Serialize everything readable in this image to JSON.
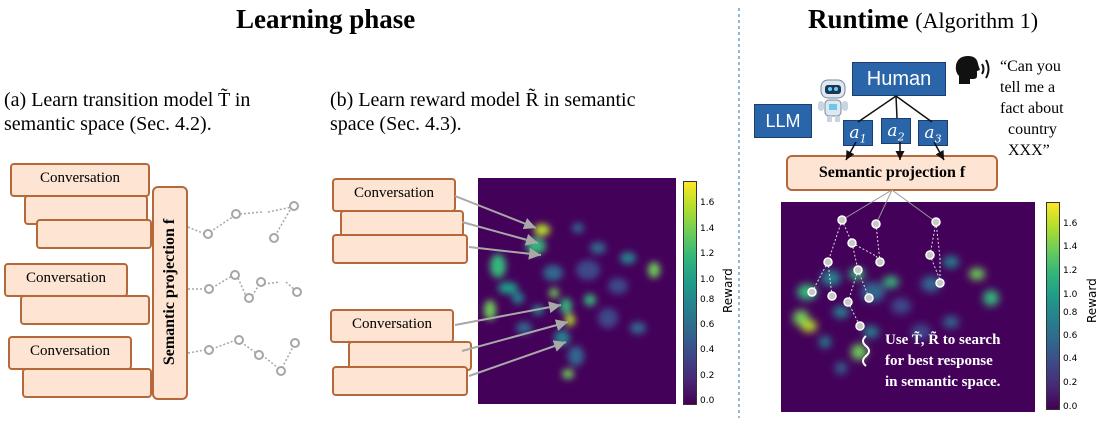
{
  "learning": {
    "title": "Learning phase",
    "panel_a": {
      "line1": "(a) Learn transition model T̃ in",
      "line2": "semantic space (Sec. 4.2)."
    },
    "panel_b": {
      "line1": "(b) Learn reward model R̃ in semantic",
      "line2": "space (Sec. 4.3)."
    },
    "conversation_label": "Conversation",
    "semantic_projection_label": "Semantic projection f"
  },
  "runtime": {
    "title": "Runtime",
    "title_suffix": "(Algorithm 1)",
    "human_label": "Human",
    "llm_label": "LLM",
    "actions": [
      "a1",
      "a2",
      "a3"
    ],
    "quote": [
      "“Can you",
      "tell me a",
      "fact about",
      "country",
      "XXX”"
    ],
    "semantic_projection_label": "Semantic projection f",
    "search_note": [
      "Use T̃, R̃ to search",
      "for best response",
      "in semantic space."
    ]
  },
  "colorbar": {
    "label": "Reward",
    "ticks": [
      "0.0",
      "0.2",
      "0.4",
      "0.6",
      "0.8",
      "1.0",
      "1.2",
      "1.4",
      "1.6"
    ],
    "range": [
      0.0,
      1.75
    ]
  },
  "colors": {
    "box_fill": "#fde4d3",
    "box_border": "#b5693a",
    "node_blue": "#2a65a9",
    "divider": "#6fa0c8"
  }
}
